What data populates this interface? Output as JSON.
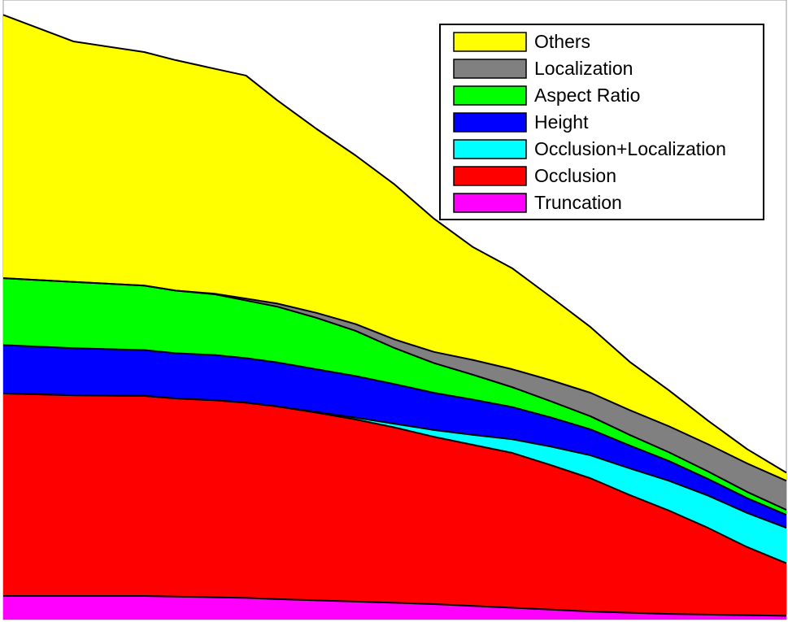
{
  "chart_data": {
    "type": "area",
    "stacked": true,
    "title": "",
    "xlabel": "",
    "ylabel": "",
    "xlim": [
      0,
      1
    ],
    "ylim": [
      0,
      1
    ],
    "grid": false,
    "legend_placement": "top-right",
    "legend_order": [
      "Others",
      "Localization",
      "Aspect Ratio",
      "Height",
      "Occlusion+Localization",
      "Occlusion",
      "Truncation"
    ],
    "x": [
      0.0,
      0.09,
      0.18,
      0.22,
      0.27,
      0.31,
      0.35,
      0.4,
      0.45,
      0.5,
      0.55,
      0.6,
      0.65,
      0.7,
      0.75,
      0.8,
      0.85,
      0.9,
      0.95,
      1.0
    ],
    "series": [
      {
        "name": "Truncation",
        "color": "#ff00ff",
        "values": [
          0.038,
          0.038,
          0.038,
          0.037,
          0.036,
          0.035,
          0.033,
          0.031,
          0.029,
          0.027,
          0.025,
          0.022,
          0.019,
          0.016,
          0.013,
          0.011,
          0.009,
          0.008,
          0.007,
          0.006
        ]
      },
      {
        "name": "Occlusion",
        "color": "#ff0000",
        "values": [
          0.327,
          0.324,
          0.323,
          0.32,
          0.318,
          0.315,
          0.311,
          0.303,
          0.294,
          0.283,
          0.27,
          0.26,
          0.25,
          0.233,
          0.215,
          0.19,
          0.167,
          0.14,
          0.11,
          0.085
        ]
      },
      {
        "name": "Occlusion+Localization",
        "color": "#00ffff",
        "values": [
          0.0,
          0.0,
          0.0,
          0.0,
          0.0,
          0.0,
          0.0,
          0.001,
          0.003,
          0.006,
          0.011,
          0.016,
          0.022,
          0.03,
          0.037,
          0.043,
          0.048,
          0.052,
          0.055,
          0.057
        ]
      },
      {
        "name": "Height",
        "color": "#0000ff",
        "values": [
          0.078,
          0.076,
          0.074,
          0.073,
          0.073,
          0.072,
          0.071,
          0.069,
          0.067,
          0.064,
          0.06,
          0.057,
          0.052,
          0.047,
          0.042,
          0.037,
          0.032,
          0.027,
          0.024,
          0.021
        ]
      },
      {
        "name": "Aspect Ratio",
        "color": "#00ff00",
        "values": [
          0.108,
          0.107,
          0.104,
          0.101,
          0.098,
          0.093,
          0.09,
          0.083,
          0.073,
          0.058,
          0.048,
          0.04,
          0.032,
          0.026,
          0.021,
          0.017,
          0.014,
          0.012,
          0.01,
          0.008
        ]
      },
      {
        "name": "Localization",
        "color": "#808080",
        "values": [
          0.0,
          0.0,
          0.0,
          0.0,
          0.001,
          0.003,
          0.005,
          0.008,
          0.011,
          0.014,
          0.018,
          0.024,
          0.029,
          0.034,
          0.038,
          0.04,
          0.042,
          0.044,
          0.046,
          0.047
        ]
      },
      {
        "name": "Others",
        "color": "#ffff00",
        "values": [
          0.425,
          0.388,
          0.377,
          0.372,
          0.363,
          0.36,
          0.328,
          0.297,
          0.272,
          0.25,
          0.215,
          0.182,
          0.163,
          0.134,
          0.106,
          0.078,
          0.058,
          0.038,
          0.023,
          0.013
        ]
      }
    ]
  }
}
